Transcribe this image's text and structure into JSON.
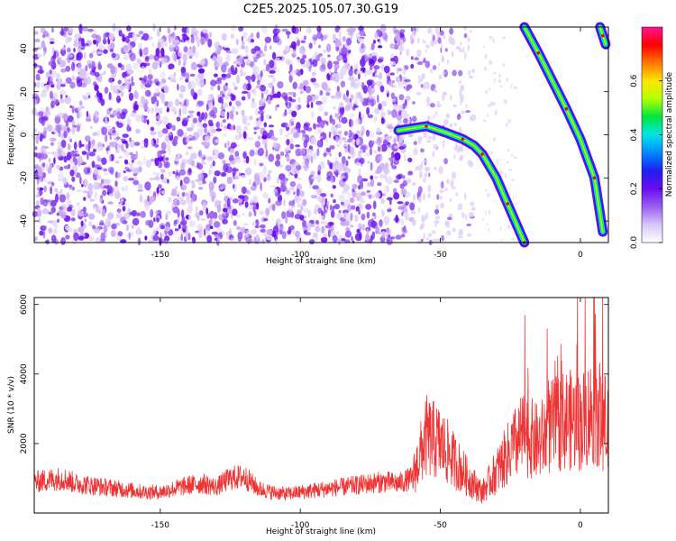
{
  "title": "C2E5.2025.105.07.30.G19",
  "colors": {
    "snr_line": "#f03232",
    "colormap": [
      "#ffffff",
      "#d8c6f8",
      "#9a5ef0",
      "#6a0cf0",
      "#1e1ef0",
      "#0088ff",
      "#00e6e6",
      "#00e640",
      "#b4ff00",
      "#ffe600",
      "#ff7800",
      "#ff0000",
      "#ff1493"
    ]
  },
  "chart_data": [
    {
      "type": "heatmap",
      "xlabel": "Height of straight line (km)",
      "ylabel": "Frequency (Hz)",
      "xlim": [
        -195,
        10
      ],
      "ylim": [
        -50,
        50
      ],
      "xticks": [
        -150,
        -100,
        -50,
        0
      ],
      "yticks": [
        -40,
        -20,
        0,
        20,
        40
      ],
      "colorbar": {
        "label": "Normalized spectral amplitude",
        "range": [
          0,
          0.8
        ],
        "ticks": [
          0.0,
          0.2,
          0.4,
          0.6
        ]
      },
      "noise_band": {
        "x_range": [
          -195,
          -60
        ],
        "y_range": [
          -50,
          50
        ]
      },
      "tracks": [
        {
          "x": [
            -65,
            -55,
            -48,
            -42,
            -38,
            -35,
            -30,
            -26,
            -22,
            -20
          ],
          "y": [
            2,
            4,
            1,
            -2,
            -5,
            -9,
            -20,
            -32,
            -44,
            -50
          ]
        },
        {
          "x": [
            -20,
            -15,
            -10,
            -5,
            0,
            5,
            8
          ],
          "y": [
            50,
            38,
            25,
            12,
            -2,
            -20,
            -45
          ]
        },
        {
          "x": [
            7,
            8,
            9
          ],
          "y": [
            50,
            46,
            42
          ]
        }
      ]
    },
    {
      "type": "line",
      "xlabel": "Height of straight line (km)",
      "ylabel": "SNR (10 * v/v)",
      "xlim": [
        -195,
        10
      ],
      "ylim": [
        0,
        6200
      ],
      "xticks": [
        -150,
        -100,
        -50,
        0
      ],
      "yticks": [
        2000,
        4000,
        6000
      ],
      "series": [
        {
          "x": [
            -195,
            -190,
            -185,
            -180,
            -175,
            -170,
            -165,
            -160,
            -155,
            -150,
            -145,
            -140,
            -135,
            -130,
            -125,
            -120,
            -115,
            -110,
            -105,
            -100,
            -95,
            -90,
            -85,
            -80,
            -75,
            -70,
            -65,
            -60,
            -55,
            -50,
            -45,
            -40,
            -35,
            -30,
            -25,
            -20,
            -15,
            -10,
            -5,
            0,
            5,
            10
          ],
          "y": [
            900,
            950,
            1000,
            850,
            800,
            750,
            700,
            650,
            600,
            600,
            700,
            800,
            850,
            750,
            1000,
            1050,
            700,
            600,
            550,
            600,
            650,
            700,
            750,
            800,
            850,
            900,
            850,
            1000,
            2200,
            2000,
            1500,
            1000,
            600,
            1200,
            1800,
            2300,
            2000,
            2500,
            2700,
            2600,
            3000,
            2500
          ]
        }
      ]
    }
  ]
}
